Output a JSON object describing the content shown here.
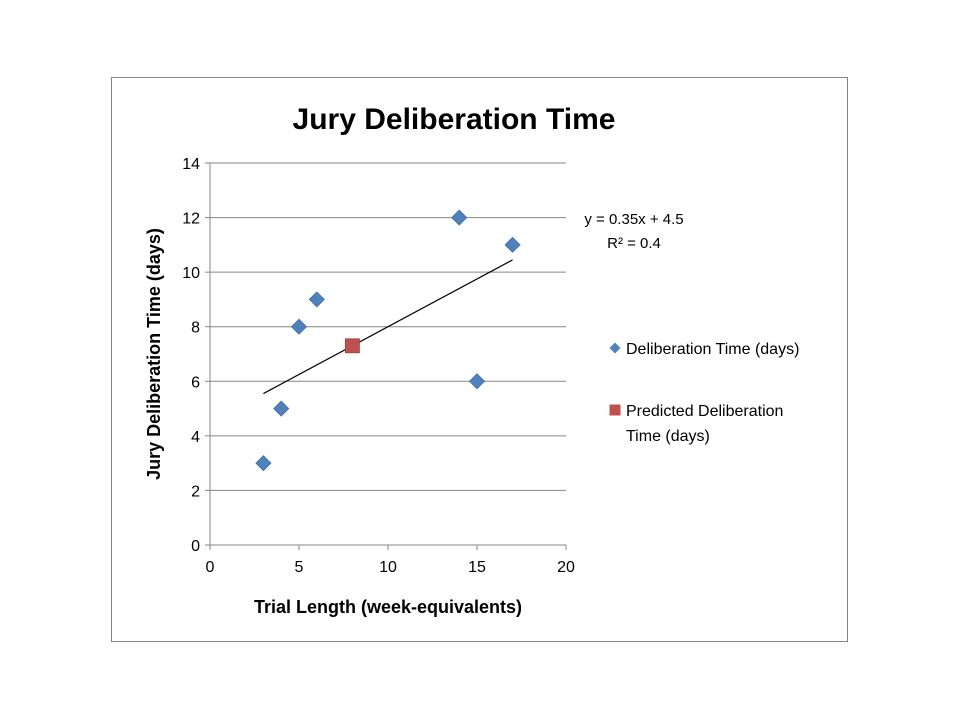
{
  "chart_data": {
    "type": "scatter",
    "title": "Jury Deliberation Time",
    "xlabel": "Trial Length (week-equivalents)",
    "ylabel": "Jury Deliberation Time (days)",
    "xlim": [
      0,
      20
    ],
    "ylim": [
      0,
      14
    ],
    "x_ticks": [
      0,
      5,
      10,
      15,
      20
    ],
    "y_ticks": [
      0,
      2,
      4,
      6,
      8,
      10,
      12,
      14
    ],
    "grid": "horizontal",
    "legend_position": "right",
    "series": [
      {
        "name": "Deliberation Time (days)",
        "marker": "diamond",
        "color": "#4F81BD",
        "points": [
          {
            "x": 3,
            "y": 3
          },
          {
            "x": 4,
            "y": 5
          },
          {
            "x": 5,
            "y": 8
          },
          {
            "x": 6,
            "y": 9
          },
          {
            "x": 14,
            "y": 12
          },
          {
            "x": 15,
            "y": 6
          },
          {
            "x": 17,
            "y": 11
          }
        ]
      },
      {
        "name": "Predicted Deliberation Time (days)",
        "legend_lines": [
          "Predicted Deliberation",
          "Time (days)"
        ],
        "marker": "square",
        "color": "#C0504D",
        "points": [
          {
            "x": 8,
            "y": 7.3
          }
        ]
      }
    ],
    "trendline": {
      "slope": 0.35,
      "intercept": 4.5,
      "x_range": [
        3,
        17
      ],
      "color": "#000000",
      "equation": "y = 0.35x + 4.5",
      "r_squared": "R² = 0.4"
    }
  }
}
